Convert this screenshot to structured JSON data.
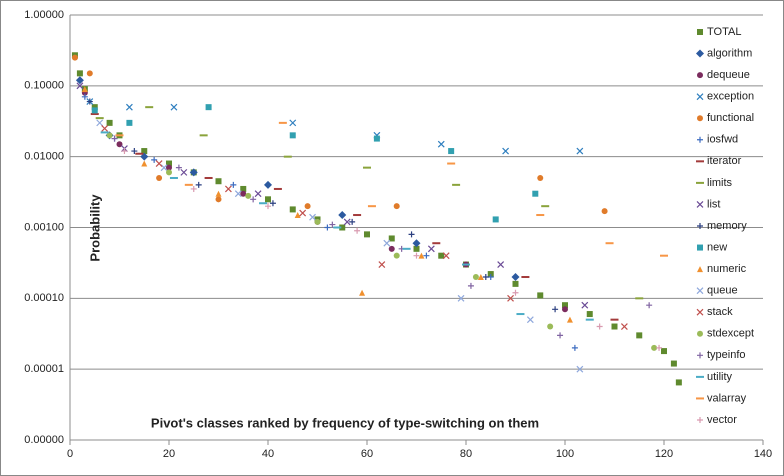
{
  "chart_data": {
    "type": "scatter",
    "x_label": "Pivot's classes ranked by frequency of type-switching on them",
    "y_label": "Probability",
    "xlim": [
      0,
      140
    ],
    "xticks": [
      0,
      20,
      40,
      60,
      80,
      100,
      120,
      140
    ],
    "ylim": [
      1e-06,
      1
    ],
    "log_y": true,
    "grid": true,
    "legend": "right",
    "yticks": [
      {
        "value": 1e-06,
        "label": "0.00000"
      },
      {
        "value": 1e-05,
        "label": "0.00001"
      },
      {
        "value": 0.0001,
        "label": "0.00010"
      },
      {
        "value": 0.001,
        "label": "0.00100"
      },
      {
        "value": 0.01,
        "label": "0.01000"
      },
      {
        "value": 0.1,
        "label": "0.10000"
      },
      {
        "value": 1,
        "label": "1.00000"
      }
    ],
    "series": [
      {
        "name": "TOTAL",
        "color": "#5f8a2e",
        "marker": "square",
        "x": [
          1,
          2,
          3,
          5,
          8,
          10,
          15,
          20,
          25,
          30,
          35,
          40,
          45,
          50,
          55,
          60,
          65,
          70,
          75,
          80,
          85,
          90,
          95,
          100,
          105,
          110,
          115,
          120,
          122,
          123
        ],
        "values": [
          0.27,
          0.15,
          0.09,
          0.05,
          0.03,
          0.02,
          0.012,
          0.008,
          0.006,
          0.0045,
          0.0035,
          0.0025,
          0.0018,
          0.0013,
          0.001,
          0.0008,
          0.0007,
          0.0005,
          0.0004,
          0.0003,
          0.00022,
          0.00016,
          0.00011,
          8e-05,
          6e-05,
          4e-05,
          3e-05,
          1.8e-05,
          1.2e-05,
          6.5e-06
        ]
      },
      {
        "name": "algorithm",
        "color": "#2c5aa0",
        "marker": "diamond",
        "x": [
          2,
          8,
          15,
          25,
          40,
          55,
          70,
          90
        ],
        "values": [
          0.12,
          0.02,
          0.01,
          0.006,
          0.004,
          0.0015,
          0.0006,
          0.0002
        ]
      },
      {
        "name": "dequeue",
        "color": "#7b2c5e",
        "marker": "circle",
        "x": [
          3,
          10,
          20,
          35,
          50,
          65,
          80,
          100
        ],
        "values": [
          0.08,
          0.015,
          0.007,
          0.003,
          0.0012,
          0.0005,
          0.0003,
          7e-05
        ]
      },
      {
        "name": "exception",
        "color": "#2f7fbf",
        "marker": "x",
        "x": [
          4,
          12,
          21,
          45,
          62,
          75,
          88,
          103
        ],
        "values": [
          0.06,
          0.05,
          0.05,
          0.03,
          0.02,
          0.015,
          0.012,
          0.012
        ]
      },
      {
        "name": "functional",
        "color": "#e07b2a",
        "marker": "circle",
        "x": [
          1,
          4,
          18,
          30,
          48,
          66,
          95,
          108
        ],
        "values": [
          0.25,
          0.15,
          0.005,
          0.0025,
          0.002,
          0.002,
          0.005,
          0.0017
        ]
      },
      {
        "name": "iosfwd",
        "color": "#3d6cc0",
        "marker": "plus",
        "x": [
          3,
          9,
          17,
          33,
          52,
          72,
          85,
          102
        ],
        "values": [
          0.07,
          0.018,
          0.009,
          0.004,
          0.001,
          0.0004,
          0.0002,
          2e-05
        ]
      },
      {
        "name": "iterator",
        "color": "#a33b3b",
        "marker": "dash",
        "x": [
          5,
          14,
          28,
          42,
          58,
          74,
          92,
          110
        ],
        "values": [
          0.04,
          0.011,
          0.005,
          0.0035,
          0.0015,
          0.0006,
          0.0002,
          5e-05
        ]
      },
      {
        "name": "limits",
        "color": "#8aa33b",
        "marker": "dash",
        "x": [
          6,
          16,
          27,
          44,
          60,
          78,
          96,
          115
        ],
        "values": [
          0.035,
          0.05,
          0.02,
          0.01,
          0.007,
          0.004,
          0.002,
          0.0001
        ]
      },
      {
        "name": "list",
        "color": "#6b4b96",
        "marker": "x",
        "x": [
          2,
          11,
          23,
          38,
          56,
          73,
          87,
          104
        ],
        "values": [
          0.1,
          0.013,
          0.006,
          0.003,
          0.0012,
          0.0005,
          0.0003,
          8e-05
        ]
      },
      {
        "name": "memory",
        "color": "#2b3f80",
        "marker": "plus",
        "x": [
          4,
          13,
          26,
          41,
          57,
          69,
          84,
          98
        ],
        "values": [
          0.06,
          0.012,
          0.004,
          0.0022,
          0.0012,
          0.0008,
          0.0002,
          7e-05
        ]
      },
      {
        "name": "new",
        "color": "#31a0b0",
        "marker": "square",
        "x": [
          5,
          12,
          28,
          45,
          62,
          77,
          86,
          94
        ],
        "values": [
          0.045,
          0.03,
          0.05,
          0.02,
          0.018,
          0.012,
          0.0013,
          0.003
        ]
      },
      {
        "name": "numeric",
        "color": "#f0902e",
        "marker": "triangle",
        "x": [
          3,
          15,
          30,
          46,
          59,
          71,
          83,
          101
        ],
        "values": [
          0.09,
          0.008,
          0.003,
          0.0015,
          0.00012,
          0.0004,
          0.0002,
          5e-05
        ]
      },
      {
        "name": "queue",
        "color": "#8fa8dc",
        "marker": "x",
        "x": [
          6,
          19,
          34,
          49,
          64,
          79,
          93,
          103
        ],
        "values": [
          0.03,
          0.007,
          0.003,
          0.0014,
          0.0006,
          0.0001,
          5e-05,
          1e-05
        ]
      },
      {
        "name": "stack",
        "color": "#c0504d",
        "marker": "x",
        "x": [
          7,
          18,
          32,
          47,
          63,
          76,
          89,
          112
        ],
        "values": [
          0.025,
          0.008,
          0.0035,
          0.0016,
          0.0003,
          0.0004,
          0.0001,
          4e-05
        ]
      },
      {
        "name": "stdexcept",
        "color": "#9bbb59",
        "marker": "circle",
        "x": [
          8,
          20,
          36,
          50,
          66,
          82,
          97,
          118
        ],
        "values": [
          0.02,
          0.006,
          0.0028,
          0.0012,
          0.0004,
          0.0002,
          4e-05,
          2e-05
        ]
      },
      {
        "name": "typeinfo",
        "color": "#8064a2",
        "marker": "plus",
        "x": [
          9,
          22,
          37,
          53,
          67,
          81,
          99,
          117
        ],
        "values": [
          0.018,
          0.007,
          0.0025,
          0.0011,
          0.0005,
          0.00015,
          3e-05,
          8e-05
        ]
      },
      {
        "name": "utility",
        "color": "#4bacc6",
        "marker": "dash",
        "x": [
          7,
          21,
          39,
          54,
          68,
          80,
          91,
          105
        ],
        "values": [
          0.022,
          0.005,
          0.0022,
          0.001,
          0.0005,
          0.0003,
          6e-05,
          5e-05
        ]
      },
      {
        "name": "valarray",
        "color": "#f79646",
        "marker": "dash",
        "x": [
          10,
          24,
          43,
          61,
          77,
          95,
          109,
          120
        ],
        "values": [
          0.02,
          0.004,
          0.03,
          0.002,
          0.008,
          0.0015,
          0.0006,
          0.0004
        ]
      },
      {
        "name": "vector",
        "color": "#d99bb0",
        "marker": "plus",
        "x": [
          11,
          25,
          40,
          58,
          70,
          90,
          107,
          119
        ],
        "values": [
          0.012,
          0.0035,
          0.002,
          0.0009,
          0.0004,
          0.00012,
          4e-05,
          2e-05
        ]
      }
    ]
  }
}
